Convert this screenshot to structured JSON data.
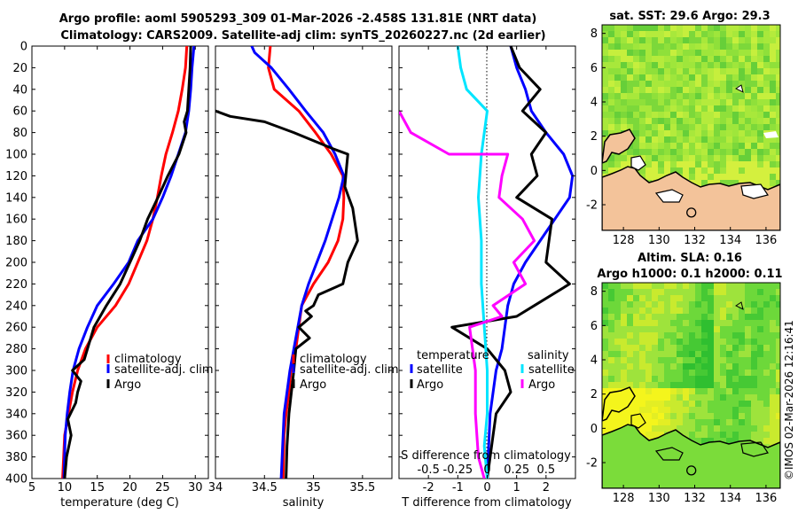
{
  "title": {
    "line1": "Argo profile: aoml 5905293_309 01-Mar-2026 -2.458S 131.81E (NRT data)",
    "line2": "Climatology: CARS2009. Satellite-adj clim: synTS_20260227.nc (2d earlier)"
  },
  "copyright": "©IMOS 02-Mar-2026 12:16:41",
  "colors": {
    "climatology": "#ff0000",
    "satellite": "#0000ff",
    "argo": "#000000",
    "t_sat": "#00e5ff",
    "s_argo": "#ff00ff",
    "land": "#f3c39a"
  },
  "chart_data": [
    {
      "type": "line",
      "id": "temperature",
      "xlabel": "temperature (deg C)",
      "ylabel": "",
      "xlim": [
        5,
        32
      ],
      "ylim": [
        400,
        0
      ],
      "xticks": [
        "5",
        "10",
        "15",
        "20",
        "25",
        "30"
      ],
      "yticks": [
        "0",
        "20",
        "40",
        "60",
        "80",
        "100",
        "120",
        "140",
        "160",
        "180",
        "200",
        "220",
        "240",
        "260",
        "280",
        "300",
        "320",
        "340",
        "360",
        "380",
        "400"
      ],
      "legend": [
        "climatology",
        "satellite-adj. clim",
        "Argo"
      ],
      "series": [
        {
          "name": "climatology",
          "x": [
            28.7,
            28.5,
            28.0,
            27.4,
            26.5,
            25.5,
            24.8,
            24.2,
            23.5,
            22.6,
            21.2,
            19.8,
            17.8,
            15.0,
            13.2,
            12.0,
            11.2,
            10.6,
            10.0,
            9.7
          ],
          "y": [
            0,
            20,
            40,
            60,
            80,
            100,
            120,
            140,
            160,
            180,
            200,
            220,
            240,
            260,
            280,
            300,
            320,
            340,
            360,
            400
          ]
        },
        {
          "name": "satellite-adj. clim",
          "x": [
            29.8,
            29.5,
            29.3,
            29.0,
            28.5,
            27.4,
            26.3,
            25.0,
            23.5,
            21.2,
            19.8,
            17.5,
            15.0,
            13.5,
            12.2,
            11.3,
            10.8,
            10.4,
            10.1,
            9.9
          ],
          "y": [
            0,
            20,
            40,
            60,
            80,
            100,
            120,
            140,
            160,
            180,
            200,
            220,
            240,
            260,
            280,
            300,
            320,
            340,
            360,
            400
          ]
        },
        {
          "name": "Argo",
          "x": [
            29.3,
            29.2,
            29.0,
            28.8,
            28.3,
            28.6,
            27.5,
            25.8,
            24.3,
            22.7,
            21.5,
            20.0,
            18.5,
            16.4,
            14.5,
            13.0,
            11.2,
            12.5,
            12.0,
            11.7,
            10.5,
            11.0,
            10.3,
            10.0
          ],
          "y": [
            0,
            20,
            40,
            60,
            70,
            80,
            100,
            120,
            140,
            160,
            180,
            200,
            220,
            240,
            260,
            290,
            300,
            310,
            320,
            330,
            345,
            360,
            380,
            400
          ]
        }
      ]
    },
    {
      "type": "line",
      "id": "salinity",
      "xlabel": "salinity",
      "ylabel": "",
      "xlim": [
        34,
        35.8
      ],
      "ylim": [
        400,
        0
      ],
      "xticks": [
        "34",
        "34.5",
        "35",
        "35.5"
      ],
      "legend": [
        "climatology",
        "satellite-adj. clim",
        "Argo"
      ],
      "series": [
        {
          "name": "climatology",
          "x": [
            34.56,
            34.54,
            34.6,
            34.85,
            35.02,
            35.18,
            35.3,
            35.31,
            35.3,
            35.25,
            35.15,
            35.0,
            34.88,
            34.85,
            34.82,
            34.77,
            34.75,
            34.72,
            34.7,
            34.69
          ],
          "y": [
            0,
            20,
            40,
            60,
            80,
            100,
            120,
            140,
            160,
            180,
            200,
            220,
            240,
            260,
            280,
            300,
            320,
            340,
            360,
            400
          ]
        },
        {
          "name": "satellite-adj. clim",
          "x": [
            34.37,
            34.4,
            34.57,
            34.75,
            34.92,
            35.1,
            35.22,
            35.31,
            35.26,
            35.12,
            34.95,
            34.88,
            34.84,
            34.8,
            34.76,
            34.73,
            34.7,
            34.69,
            34.68,
            34.67
          ],
          "y": [
            0,
            6,
            20,
            40,
            60,
            80,
            100,
            120,
            140,
            180,
            220,
            240,
            260,
            280,
            300,
            320,
            340,
            360,
            380,
            400
          ]
        },
        {
          "name": "Argo",
          "x": [
            34.0,
            34.15,
            34.5,
            34.8,
            35.2,
            35.35,
            35.34,
            35.32,
            35.4,
            35.45,
            35.35,
            35.3,
            35.05,
            35.0,
            34.92,
            34.98,
            34.85,
            34.96,
            34.82,
            34.8,
            34.75,
            34.73,
            34.72
          ],
          "y": [
            60,
            65,
            70,
            80,
            95,
            100,
            110,
            130,
            150,
            180,
            200,
            220,
            230,
            240,
            245,
            250,
            260,
            270,
            280,
            300,
            340,
            370,
            400
          ]
        }
      ]
    },
    {
      "type": "line",
      "id": "differences",
      "xlabel": "T difference from climatology",
      "xlabel2": "S difference from climatology",
      "xlim": [
        -3,
        3
      ],
      "ylim": [
        400,
        0
      ],
      "xticks": [
        "-2",
        "-1",
        "0",
        "1",
        "2"
      ],
      "xticks2": [
        "-0.5",
        "-0.25",
        "0",
        "0.25",
        "0.5"
      ],
      "legend_temperature_title": "temperature",
      "legend_salinity_title": "salinity",
      "legend": [
        "satellite",
        "Argo",
        "satellite",
        "Argo"
      ],
      "series": [
        {
          "name": "temperature satellite",
          "x": [
            0.8,
            1.0,
            1.3,
            1.5,
            2.0,
            2.6,
            2.9,
            2.8,
            2.3,
            1.8,
            1.3,
            0.9,
            0.7,
            0.6,
            0.5,
            0.3,
            0.1,
            0.0
          ],
          "y": [
            0,
            20,
            40,
            60,
            80,
            100,
            120,
            140,
            160,
            180,
            200,
            220,
            240,
            260,
            280,
            300,
            340,
            400
          ]
        },
        {
          "name": "temperature Argo",
          "x": [
            0.8,
            1.1,
            1.8,
            1.2,
            2.0,
            1.5,
            1.7,
            1.0,
            2.2,
            2.0,
            2.8,
            1.6,
            1.0,
            -1.2,
            0.0,
            0.6,
            0.8,
            0.3,
            0.2,
            0.1,
            0.0
          ],
          "y": [
            0,
            20,
            40,
            60,
            80,
            100,
            120,
            140,
            160,
            200,
            220,
            240,
            250,
            260,
            280,
            300,
            320,
            340,
            360,
            380,
            400
          ]
        },
        {
          "name": "salinity satellite",
          "x": [
            -1.0,
            -0.9,
            -0.7,
            0.0,
            -0.2,
            -0.3,
            -0.2,
            -0.2,
            -0.1,
            0.0,
            0.0,
            -0.1,
            0.0
          ],
          "y": [
            0,
            20,
            40,
            60,
            100,
            140,
            180,
            220,
            260,
            300,
            340,
            370,
            400
          ]
        },
        {
          "name": "salinity Argo",
          "x": [
            -3.0,
            -2.6,
            -1.3,
            0.7,
            0.5,
            0.4,
            1.2,
            1.6,
            0.9,
            1.3,
            0.2,
            0.5,
            -0.6,
            -0.4,
            -0.4,
            -0.3,
            -0.1
          ],
          "y": [
            60,
            80,
            100,
            100,
            120,
            140,
            160,
            180,
            200,
            220,
            240,
            250,
            260,
            300,
            340,
            380,
            400
          ]
        }
      ]
    },
    {
      "type": "heatmap",
      "id": "sst-map",
      "title": "sat. SST: 29.6 Argo: 29.3",
      "xticks": [
        "128",
        "130",
        "132",
        "134",
        "136"
      ],
      "yticks": [
        "8",
        "6",
        "4",
        "2",
        "0",
        "-2"
      ],
      "xlim": [
        126.8,
        136.8
      ],
      "ylim": [
        -3.5,
        8.5
      ],
      "argo_position": {
        "lon": 131.81,
        "lat": -2.458
      }
    },
    {
      "type": "heatmap",
      "id": "sla-map",
      "title": "Altim. SLA: 0.16",
      "subtitle": "Argo h1000: 0.1 h2000: 0.11",
      "xticks": [
        "128",
        "130",
        "132",
        "134",
        "136"
      ],
      "yticks": [
        "8",
        "6",
        "4",
        "2",
        "0",
        "-2"
      ],
      "xlim": [
        126.8,
        136.8
      ],
      "ylim": [
        -3.5,
        8.5
      ],
      "argo_position": {
        "lon": 131.81,
        "lat": -2.458
      }
    }
  ]
}
